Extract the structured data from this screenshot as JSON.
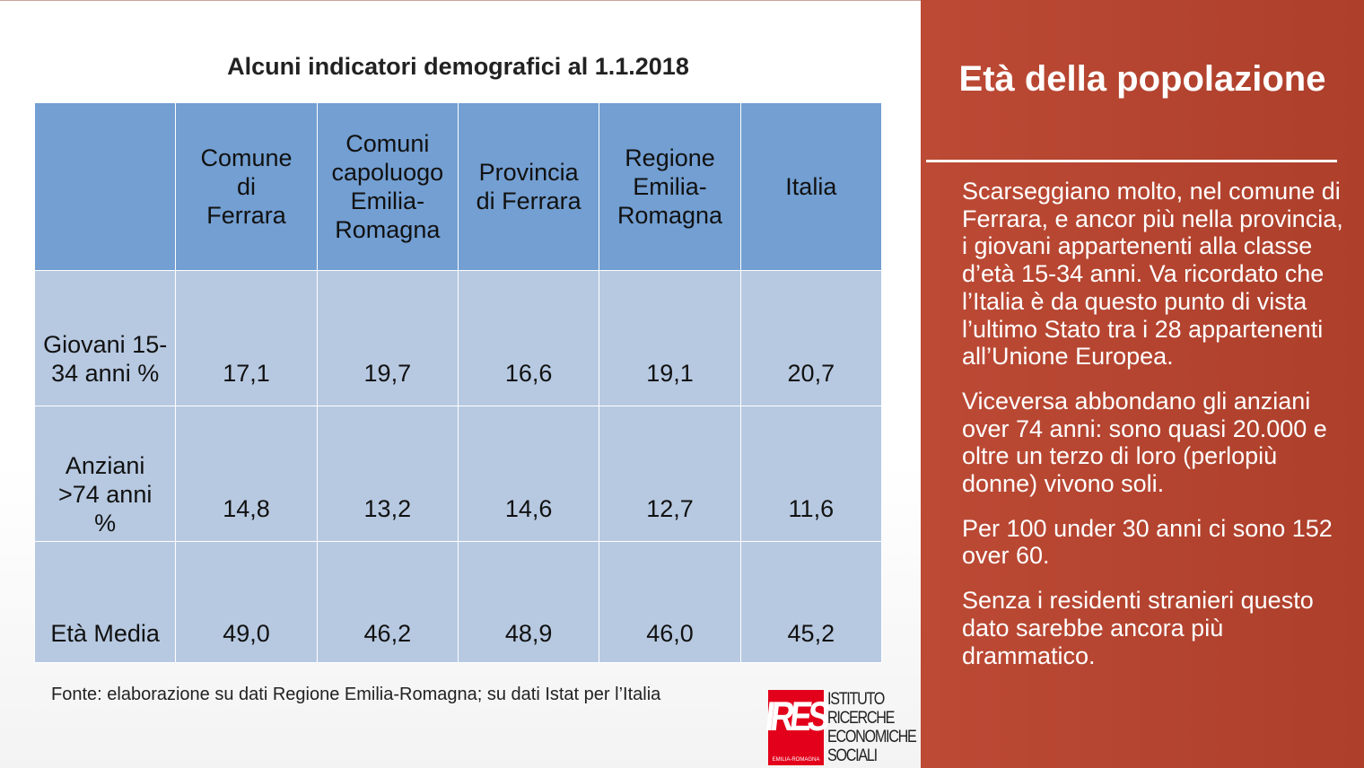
{
  "left": {
    "title": "Alcuni indicatori demografici al 1.1.2018",
    "table": {
      "headers": [
        "",
        "Comune di Ferrara",
        "Comuni capoluogo Emilia-Romagna",
        "Provincia di Ferrara",
        "Regione Emilia-Romagna",
        "Italia"
      ],
      "rows": [
        {
          "label": "Giovani 15-34 anni %",
          "values": [
            "17,1",
            "19,7",
            "16,6",
            "19,1",
            "20,7"
          ]
        },
        {
          "label": "Anziani >74 anni %",
          "values": [
            "14,8",
            "13,2",
            "14,6",
            "12,7",
            "11,6"
          ]
        },
        {
          "label": "Età Media",
          "values": [
            "49,0",
            "46,2",
            "48,9",
            "46,0",
            "45,2"
          ]
        }
      ]
    },
    "source": "Fonte: elaborazione su dati Regione Emilia-Romagna; su dati Istat per l’Italia",
    "logo": {
      "mark": "IRES",
      "sub": "EMILIA-ROMAGNA",
      "lines": [
        "ISTITUTO",
        "RICERCHE",
        "ECONOMICHE",
        "SOCIALI"
      ]
    }
  },
  "right": {
    "title": "Età della popolazione",
    "paragraphs": [
      "Scarseggiano molto, nel comune di Ferrara, e ancor più nella provincia, i giovani appartenenti alla classe d’età 15-34 anni. Va ricordato che l’Italia è da questo punto di vista l’ultimo Stato tra i 28 appartenenti all’Unione Europea.",
      "Viceversa abbondano gli anziani over 74 anni: sono quasi 20.000 e oltre un terzo di loro (perlopiù donne) vivono soli.",
      "Per 100 under 30 anni ci sono 152 over 60.",
      "Senza i residenti stranieri questo dato sarebbe ancora più drammatico."
    ]
  },
  "colors": {
    "accent": "#b84530",
    "header": "#739fd2",
    "cell": "#b7c9e1"
  }
}
